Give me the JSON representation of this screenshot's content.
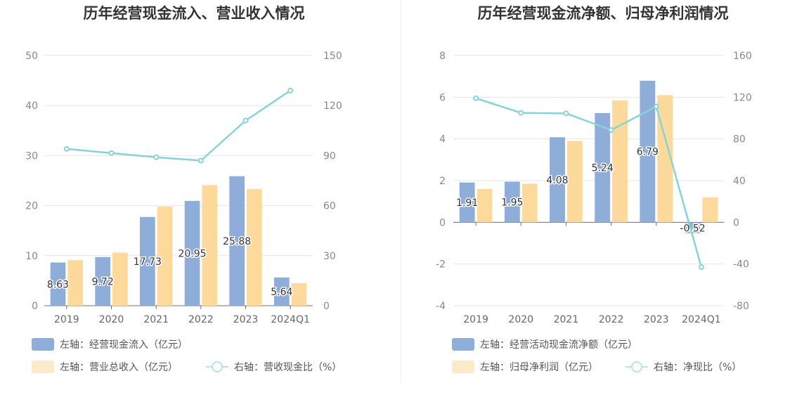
{
  "chart_data": [
    {
      "type": "bar",
      "title": "历年经营现金流入、营业收入情况",
      "categories": [
        "2019",
        "2020",
        "2021",
        "2022",
        "2023",
        "2024Q1"
      ],
      "left_axis": {
        "range": [
          0,
          50
        ],
        "ticks": [
          "0",
          "10",
          "20",
          "30",
          "40",
          "50"
        ]
      },
      "right_axis": {
        "range": [
          0,
          150
        ],
        "ticks": [
          "0",
          "30",
          "60",
          "90",
          "120",
          "150"
        ]
      },
      "series": [
        {
          "name": "左轴：经营现金流入（亿元）",
          "kind": "bar",
          "axis": "left",
          "color": "#8eadd9",
          "values": [
            8.63,
            9.72,
            17.73,
            20.95,
            25.88,
            5.64
          ],
          "labels": [
            "8.63",
            "9.72",
            "17.73",
            "20.95",
            "25.88",
            "5.64"
          ]
        },
        {
          "name": "左轴：营业总收入（亿元）",
          "kind": "bar",
          "axis": "left",
          "color": "#fdd99b",
          "values": [
            9.1,
            10.6,
            19.8,
            24.1,
            23.3,
            4.5
          ]
        },
        {
          "name": "右轴：营收现金比（%）",
          "kind": "line",
          "axis": "right",
          "color": "#88d3d7",
          "values": [
            94.0,
            91.5,
            89.0,
            87.0,
            111.0,
            129.0
          ]
        }
      ],
      "grid": true,
      "legend_position": "bottom-left"
    },
    {
      "type": "bar",
      "title": "历年经营现金流净额、归母净利润情况",
      "categories": [
        "2019",
        "2020",
        "2021",
        "2022",
        "2023",
        "2024Q1"
      ],
      "left_axis": {
        "range": [
          -4,
          8
        ],
        "ticks": [
          "-4",
          "-2",
          "0",
          "2",
          "4",
          "6",
          "8"
        ]
      },
      "right_axis": {
        "range": [
          -80,
          160
        ],
        "ticks": [
          "-80",
          "-40",
          "0",
          "40",
          "80",
          "120",
          "160"
        ]
      },
      "series": [
        {
          "name": "左轴：经营活动现金流净额（亿元）",
          "kind": "bar",
          "axis": "left",
          "color": "#8eadd9",
          "values": [
            1.91,
            1.95,
            4.08,
            5.24,
            6.79,
            -0.52
          ],
          "labels": [
            "1.91",
            "1.95",
            "4.08",
            "5.24",
            "6.79",
            "-0.52"
          ]
        },
        {
          "name": "左轴：归母净利润（亿元）",
          "kind": "bar",
          "axis": "left",
          "color": "#fdd99b",
          "values": [
            1.6,
            1.85,
            3.9,
            5.85,
            6.1,
            1.2
          ]
        },
        {
          "name": "右轴：净现比（%）",
          "kind": "line",
          "axis": "right",
          "color": "#88d3d7",
          "values": [
            119.0,
            105.0,
            104.5,
            88.5,
            111.0,
            -43.0
          ]
        }
      ],
      "grid": true,
      "legend_position": "bottom-left"
    }
  ]
}
